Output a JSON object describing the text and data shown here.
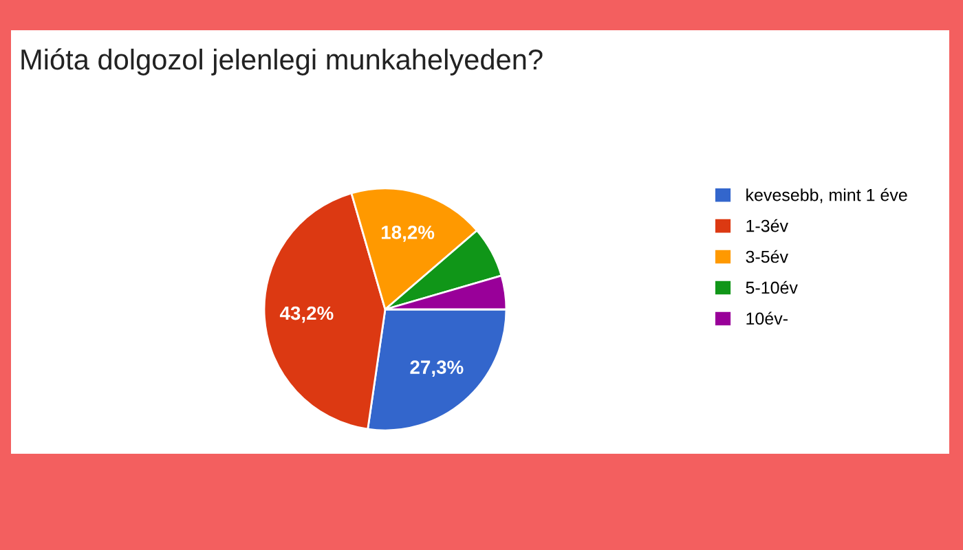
{
  "chart_data": {
    "type": "pie",
    "title": "Mióta dolgozol jelenlegi munkahelyeden?",
    "categories": [
      "kevesebb, mint 1 éve",
      "1-3év",
      "3-5év",
      "5-10év",
      "10év-"
    ],
    "values": [
      27.3,
      43.2,
      18.2,
      6.8,
      4.5
    ],
    "colors": [
      "#3366cc",
      "#dc3912",
      "#ff9900",
      "#109618",
      "#990099"
    ],
    "value_labels": [
      "27,3%",
      "43,2%",
      "18,2%",
      null,
      null
    ],
    "legend": "right"
  }
}
